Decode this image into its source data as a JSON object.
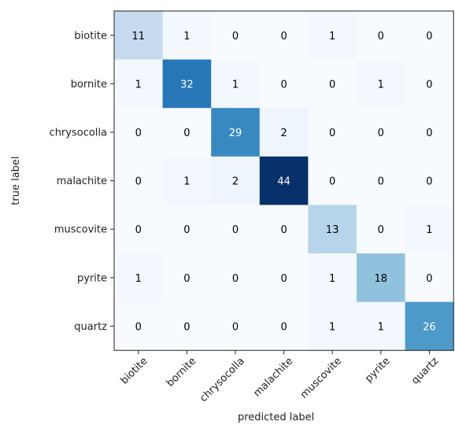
{
  "chart_data": {
    "type": "heatmap",
    "title": "",
    "xlabel": "predicted label",
    "ylabel": "true label",
    "x_categories": [
      "biotite",
      "bornite",
      "chrysocolla",
      "malachite",
      "muscovite",
      "pyrite",
      "quartz"
    ],
    "y_categories": [
      "biotite",
      "bornite",
      "chrysocolla",
      "malachite",
      "muscovite",
      "pyrite",
      "quartz"
    ],
    "values": [
      [
        11,
        1,
        0,
        0,
        1,
        0,
        0
      ],
      [
        1,
        32,
        1,
        0,
        0,
        1,
        0
      ],
      [
        0,
        0,
        29,
        2,
        0,
        0,
        0
      ],
      [
        0,
        1,
        2,
        44,
        0,
        0,
        0
      ],
      [
        0,
        0,
        0,
        0,
        13,
        0,
        1
      ],
      [
        1,
        0,
        0,
        0,
        1,
        18,
        0
      ],
      [
        0,
        0,
        0,
        0,
        1,
        1,
        26
      ]
    ],
    "colormap": "Blues",
    "value_range": [
      0,
      44
    ],
    "grid": false,
    "legend": "none"
  }
}
